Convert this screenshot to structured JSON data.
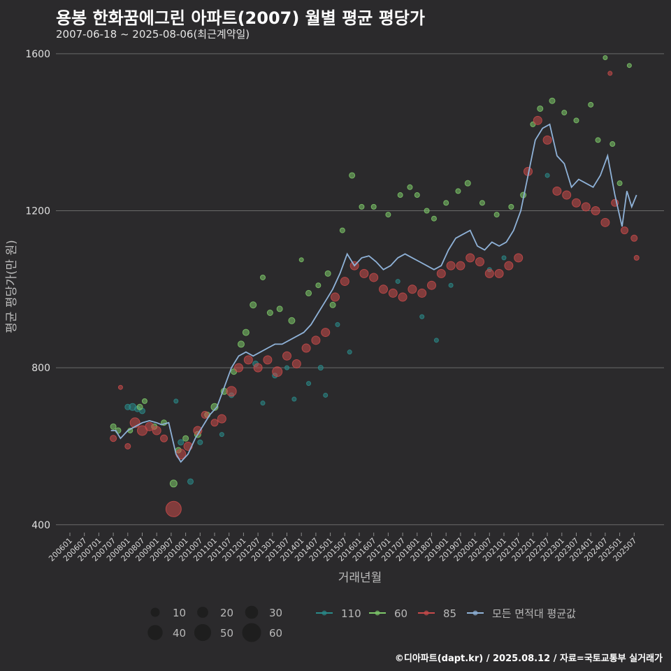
{
  "title": "용봉 한화꿈에그린 아파트(2007) 월별 평균 평당가",
  "subtitle": "2007-06-18 ~ 2025-08-06(최근계약일)",
  "credit": "©디아파트(dapt.kr) / 2025.08.12 / 자료=국토교통부 실거래가",
  "chart_data": {
    "type": "scatter",
    "xlabel": "거래년월",
    "ylabel": "평균 평당가(만 원)",
    "x_ticks": [
      "200601",
      "200607",
      "200701",
      "200707",
      "200801",
      "200807",
      "200901",
      "200907",
      "201001",
      "201007",
      "201101",
      "201107",
      "201201",
      "201207",
      "201301",
      "201307",
      "201401",
      "201407",
      "201501",
      "201507",
      "201601",
      "201607",
      "201701",
      "201707",
      "201801",
      "201807",
      "201901",
      "201907",
      "202001",
      "202007",
      "202101",
      "202107",
      "202201",
      "202207",
      "202301",
      "202307",
      "202401",
      "202407",
      "202501",
      "202507"
    ],
    "y_ticks": [
      400,
      800,
      1200,
      1600
    ],
    "ylim": [
      380,
      1630
    ],
    "grid": "horizontal",
    "size_legend": [
      10,
      20,
      30,
      40,
      50,
      60
    ],
    "series": [
      {
        "name": "110",
        "color": "#2a8a8a",
        "points": [
          [
            "2008-01",
            700,
            8
          ],
          [
            "2008-03",
            700,
            10
          ],
          [
            "2008-05",
            695,
            8
          ],
          [
            "2008-07",
            690,
            8
          ],
          [
            "2009-09",
            715,
            6
          ],
          [
            "2009-11",
            610,
            8
          ],
          [
            "2010-03",
            510,
            8
          ],
          [
            "2010-07",
            610,
            7
          ],
          [
            "2011-04",
            630,
            6
          ],
          [
            "2011-08",
            730,
            7
          ],
          [
            "2012-06",
            810,
            8
          ],
          [
            "2012-09",
            710,
            6
          ],
          [
            "2013-02",
            780,
            7
          ],
          [
            "2013-07",
            800,
            6
          ],
          [
            "2013-10",
            720,
            6
          ],
          [
            "2014-04",
            760,
            6
          ],
          [
            "2014-09",
            800,
            7
          ],
          [
            "2014-11",
            730,
            6
          ],
          [
            "2015-04",
            910,
            6
          ],
          [
            "2015-09",
            840,
            6
          ],
          [
            "2017-05",
            1020,
            6
          ],
          [
            "2018-03",
            930,
            6
          ],
          [
            "2018-09",
            870,
            6
          ],
          [
            "2019-03",
            1010,
            6
          ],
          [
            "2020-07",
            1050,
            6
          ],
          [
            "2021-01",
            1080,
            6
          ],
          [
            "2022-07",
            1290,
            6
          ]
        ]
      },
      {
        "name": "60",
        "color": "#7ec86a",
        "points": [
          [
            "2007-07",
            650,
            8
          ],
          [
            "2007-09",
            640,
            8
          ],
          [
            "2008-02",
            640,
            7
          ],
          [
            "2008-06",
            700,
            8
          ],
          [
            "2008-08",
            715,
            7
          ],
          [
            "2008-12",
            650,
            8
          ],
          [
            "2009-04",
            660,
            8
          ],
          [
            "2009-08",
            505,
            10
          ],
          [
            "2009-10",
            590,
            8
          ],
          [
            "2010-01",
            620,
            8
          ],
          [
            "2010-06",
            630,
            9
          ],
          [
            "2010-10",
            680,
            8
          ],
          [
            "2011-01",
            700,
            10
          ],
          [
            "2011-05",
            740,
            9
          ],
          [
            "2011-09",
            790,
            8
          ],
          [
            "2011-12",
            860,
            9
          ],
          [
            "2012-02",
            890,
            9
          ],
          [
            "2012-05",
            960,
            9
          ],
          [
            "2012-09",
            1030,
            7
          ],
          [
            "2012-12",
            940,
            8
          ],
          [
            "2013-04",
            950,
            8
          ],
          [
            "2013-09",
            920,
            9
          ],
          [
            "2014-01",
            1075,
            6
          ],
          [
            "2014-04",
            990,
            8
          ],
          [
            "2014-08",
            1010,
            7
          ],
          [
            "2014-12",
            1040,
            8
          ],
          [
            "2015-02",
            960,
            8
          ],
          [
            "2015-06",
            1150,
            7
          ],
          [
            "2015-10",
            1290,
            8
          ],
          [
            "2016-02",
            1210,
            7
          ],
          [
            "2016-07",
            1210,
            7
          ],
          [
            "2017-01",
            1190,
            7
          ],
          [
            "2017-06",
            1240,
            7
          ],
          [
            "2017-10",
            1260,
            7
          ],
          [
            "2018-01",
            1240,
            7
          ],
          [
            "2018-05",
            1200,
            7
          ],
          [
            "2018-08",
            1180,
            7
          ],
          [
            "2019-01",
            1220,
            7
          ],
          [
            "2019-06",
            1250,
            7
          ],
          [
            "2019-10",
            1270,
            8
          ],
          [
            "2020-04",
            1220,
            7
          ],
          [
            "2020-10",
            1190,
            7
          ],
          [
            "2021-04",
            1210,
            7
          ],
          [
            "2021-09",
            1240,
            8
          ],
          [
            "2022-01",
            1420,
            7
          ],
          [
            "2022-04",
            1460,
            8
          ],
          [
            "2022-09",
            1480,
            8
          ],
          [
            "2023-02",
            1450,
            7
          ],
          [
            "2023-07",
            1430,
            7
          ],
          [
            "2024-01",
            1470,
            7
          ],
          [
            "2024-04",
            1380,
            7
          ],
          [
            "2024-07",
            1590,
            6
          ],
          [
            "2024-10",
            1370,
            7
          ],
          [
            "2025-01",
            1270,
            7
          ],
          [
            "2025-05",
            1570,
            6
          ]
        ]
      },
      {
        "name": "85",
        "color": "#c84a4a",
        "points": [
          [
            "2007-07",
            620,
            9
          ],
          [
            "2007-10",
            750,
            6
          ],
          [
            "2008-01",
            600,
            8
          ],
          [
            "2008-04",
            660,
            14
          ],
          [
            "2008-07",
            640,
            14
          ],
          [
            "2008-10",
            650,
            12
          ],
          [
            "2009-01",
            640,
            12
          ],
          [
            "2009-04",
            620,
            10
          ],
          [
            "2009-08",
            440,
            22
          ],
          [
            "2009-11",
            580,
            14
          ],
          [
            "2010-02",
            600,
            12
          ],
          [
            "2010-06",
            640,
            12
          ],
          [
            "2010-09",
            680,
            10
          ],
          [
            "2011-01",
            660,
            10
          ],
          [
            "2011-04",
            670,
            12
          ],
          [
            "2011-08",
            740,
            14
          ],
          [
            "2011-11",
            800,
            12
          ],
          [
            "2012-03",
            820,
            12
          ],
          [
            "2012-07",
            800,
            12
          ],
          [
            "2012-11",
            820,
            12
          ],
          [
            "2013-03",
            790,
            14
          ],
          [
            "2013-07",
            830,
            12
          ],
          [
            "2013-11",
            810,
            12
          ],
          [
            "2014-03",
            850,
            12
          ],
          [
            "2014-07",
            870,
            12
          ],
          [
            "2014-11",
            890,
            12
          ],
          [
            "2015-03",
            980,
            12
          ],
          [
            "2015-07",
            1020,
            12
          ],
          [
            "2015-11",
            1060,
            12
          ],
          [
            "2016-03",
            1040,
            12
          ],
          [
            "2016-07",
            1030,
            12
          ],
          [
            "2016-11",
            1000,
            12
          ],
          [
            "2017-03",
            990,
            12
          ],
          [
            "2017-07",
            980,
            12
          ],
          [
            "2017-11",
            1000,
            12
          ],
          [
            "2018-03",
            990,
            12
          ],
          [
            "2018-07",
            1010,
            12
          ],
          [
            "2018-11",
            1040,
            12
          ],
          [
            "2019-03",
            1060,
            12
          ],
          [
            "2019-07",
            1060,
            12
          ],
          [
            "2019-11",
            1080,
            12
          ],
          [
            "2020-03",
            1070,
            12
          ],
          [
            "2020-07",
            1040,
            12
          ],
          [
            "2020-11",
            1040,
            12
          ],
          [
            "2021-03",
            1060,
            12
          ],
          [
            "2021-07",
            1080,
            12
          ],
          [
            "2021-11",
            1300,
            12
          ],
          [
            "2022-03",
            1430,
            12
          ],
          [
            "2022-07",
            1380,
            12
          ],
          [
            "2022-11",
            1250,
            12
          ],
          [
            "2023-03",
            1240,
            12
          ],
          [
            "2023-07",
            1220,
            12
          ],
          [
            "2023-11",
            1210,
            12
          ],
          [
            "2024-03",
            1200,
            12
          ],
          [
            "2024-07",
            1170,
            12
          ],
          [
            "2024-09",
            1550,
            6
          ],
          [
            "2024-11",
            1220,
            10
          ],
          [
            "2025-03",
            1150,
            10
          ],
          [
            "2025-07",
            1130,
            9
          ],
          [
            "2025-08",
            1080,
            7
          ]
        ]
      },
      {
        "name": "모든 면적대 평균값",
        "color": "#8fb2d8",
        "line": [
          [
            "2007-06",
            640
          ],
          [
            "2007-08",
            640
          ],
          [
            "2007-10",
            620
          ],
          [
            "2008-01",
            640
          ],
          [
            "2008-04",
            650
          ],
          [
            "2008-07",
            660
          ],
          [
            "2008-10",
            665
          ],
          [
            "2009-01",
            660
          ],
          [
            "2009-03",
            655
          ],
          [
            "2009-06",
            660
          ],
          [
            "2009-09",
            580
          ],
          [
            "2009-11",
            560
          ],
          [
            "2010-02",
            580
          ],
          [
            "2010-05",
            620
          ],
          [
            "2010-08",
            650
          ],
          [
            "2010-11",
            680
          ],
          [
            "2011-02",
            700
          ],
          [
            "2011-05",
            750
          ],
          [
            "2011-08",
            800
          ],
          [
            "2011-11",
            830
          ],
          [
            "2012-02",
            840
          ],
          [
            "2012-05",
            830
          ],
          [
            "2012-08",
            840
          ],
          [
            "2012-11",
            850
          ],
          [
            "2013-02",
            860
          ],
          [
            "2013-05",
            860
          ],
          [
            "2013-08",
            870
          ],
          [
            "2013-11",
            880
          ],
          [
            "2014-02",
            890
          ],
          [
            "2014-05",
            910
          ],
          [
            "2014-08",
            940
          ],
          [
            "2014-11",
            970
          ],
          [
            "2015-02",
            1000
          ],
          [
            "2015-05",
            1040
          ],
          [
            "2015-08",
            1090
          ],
          [
            "2015-11",
            1060
          ],
          [
            "2016-02",
            1080
          ],
          [
            "2016-05",
            1085
          ],
          [
            "2016-08",
            1070
          ],
          [
            "2016-11",
            1050
          ],
          [
            "2017-02",
            1060
          ],
          [
            "2017-05",
            1080
          ],
          [
            "2017-08",
            1090
          ],
          [
            "2017-11",
            1080
          ],
          [
            "2018-02",
            1070
          ],
          [
            "2018-05",
            1060
          ],
          [
            "2018-08",
            1050
          ],
          [
            "2018-11",
            1060
          ],
          [
            "2019-02",
            1100
          ],
          [
            "2019-05",
            1130
          ],
          [
            "2019-08",
            1140
          ],
          [
            "2019-11",
            1150
          ],
          [
            "2020-02",
            1110
          ],
          [
            "2020-05",
            1100
          ],
          [
            "2020-08",
            1120
          ],
          [
            "2020-11",
            1110
          ],
          [
            "2021-02",
            1120
          ],
          [
            "2021-05",
            1150
          ],
          [
            "2021-08",
            1200
          ],
          [
            "2021-11",
            1290
          ],
          [
            "2022-02",
            1380
          ],
          [
            "2022-05",
            1410
          ],
          [
            "2022-08",
            1420
          ],
          [
            "2022-11",
            1340
          ],
          [
            "2023-02",
            1320
          ],
          [
            "2023-05",
            1260
          ],
          [
            "2023-08",
            1280
          ],
          [
            "2023-11",
            1270
          ],
          [
            "2024-02",
            1260
          ],
          [
            "2024-05",
            1290
          ],
          [
            "2024-08",
            1340
          ],
          [
            "2024-11",
            1240
          ],
          [
            "2025-02",
            1160
          ],
          [
            "2025-04",
            1250
          ],
          [
            "2025-06",
            1210
          ],
          [
            "2025-08",
            1240
          ]
        ]
      }
    ]
  }
}
